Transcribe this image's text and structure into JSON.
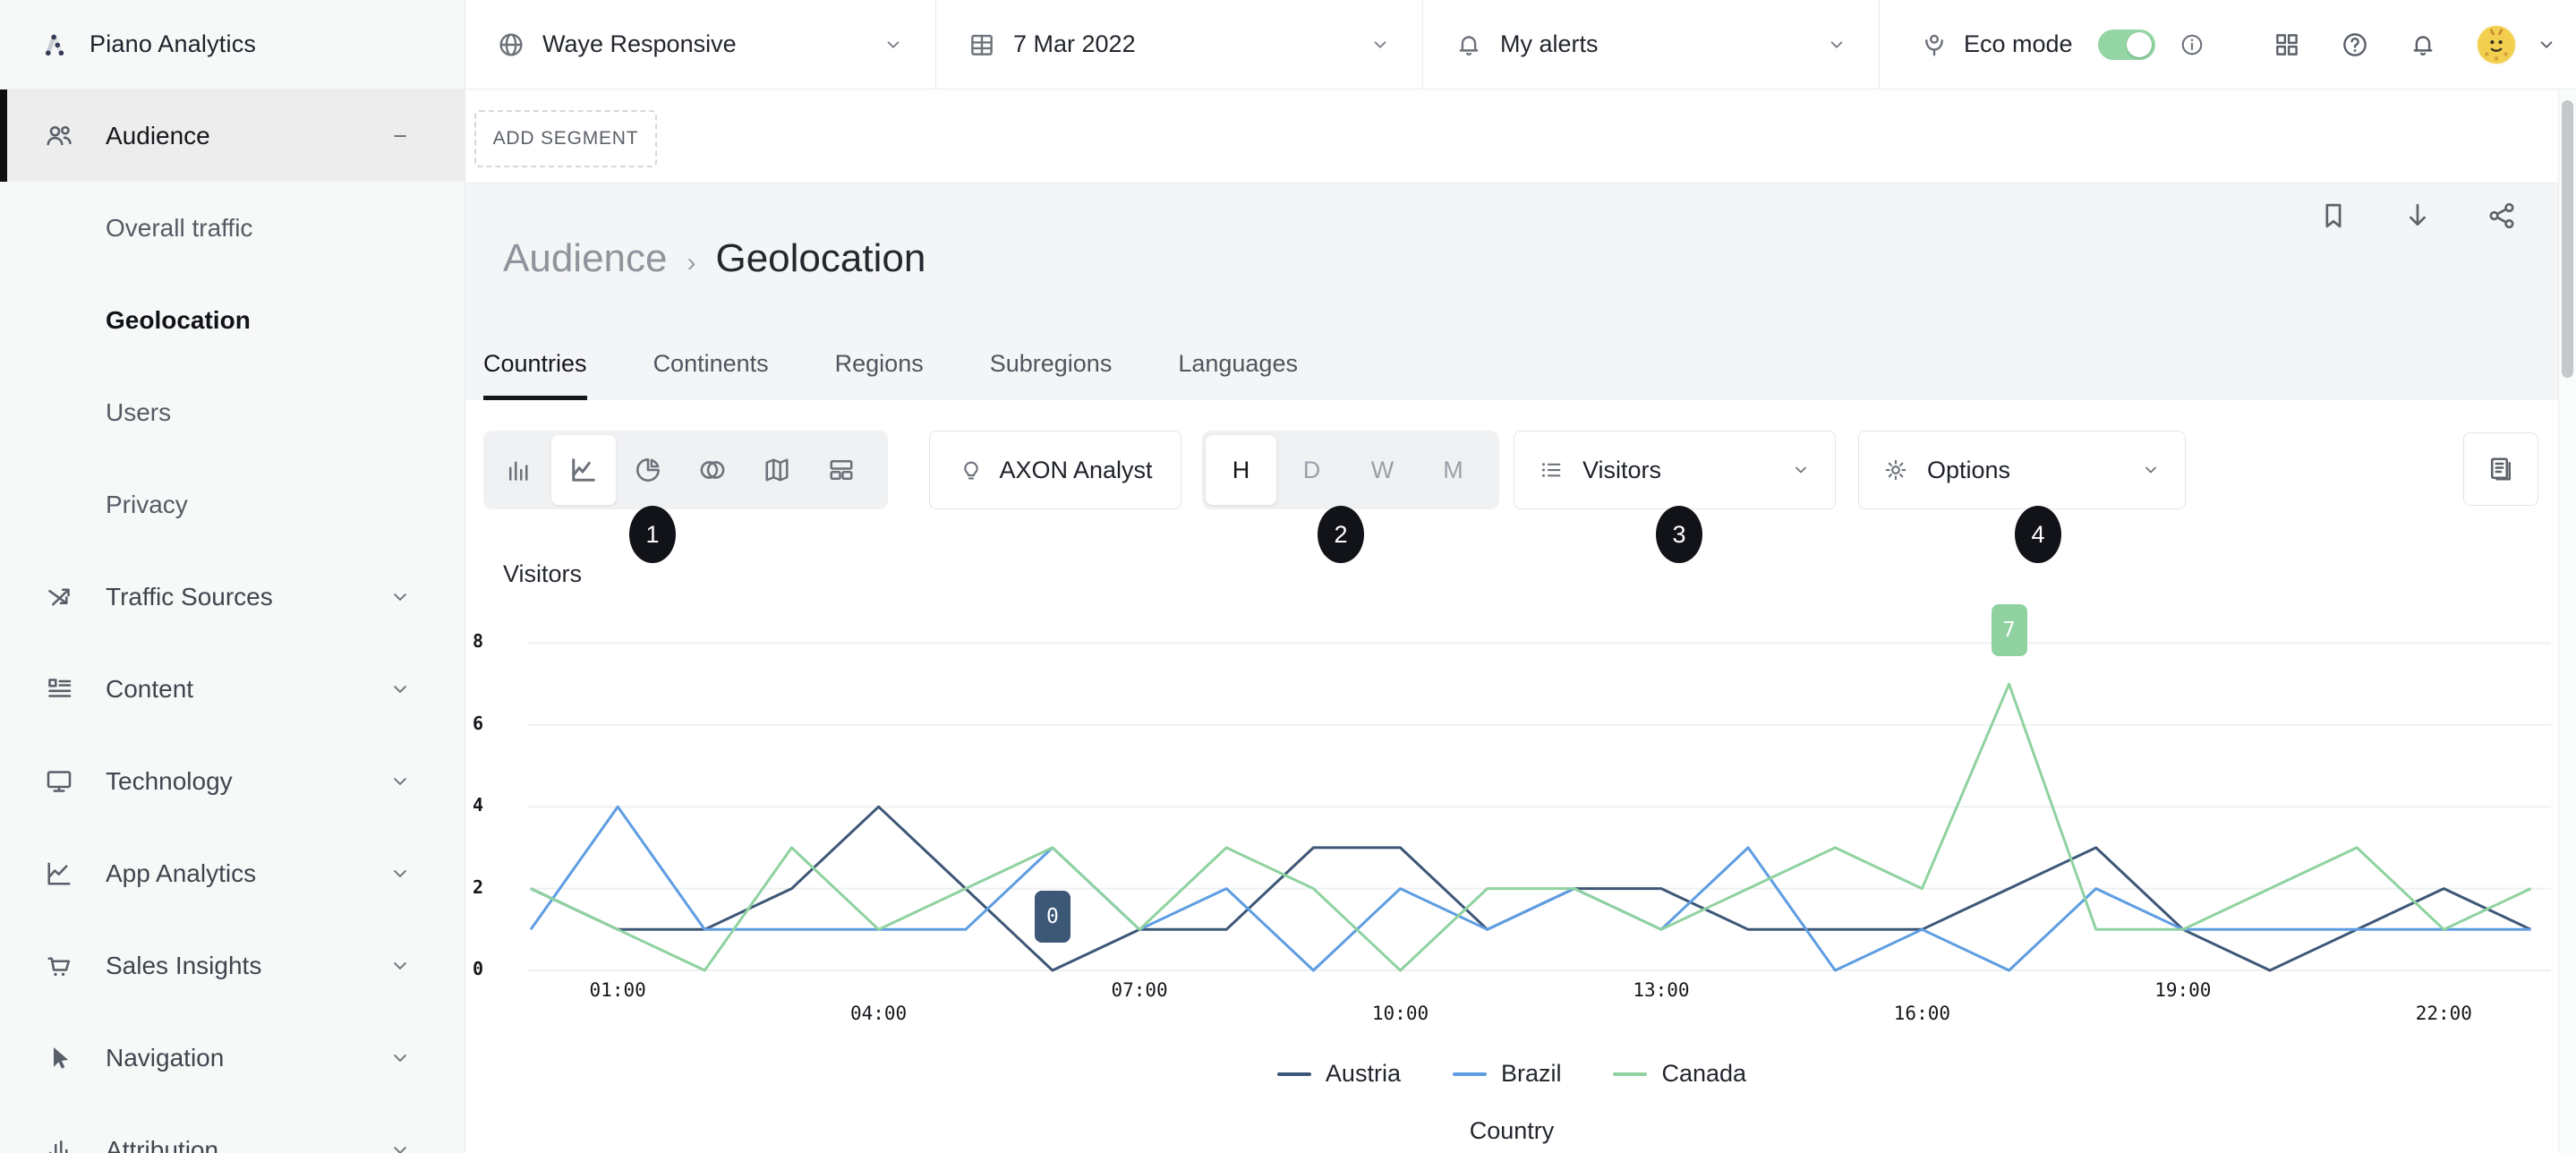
{
  "header": {
    "brand": "Piano Analytics",
    "site": {
      "label": "Waye Responsive"
    },
    "date": {
      "label": "7 Mar 2022"
    },
    "alerts": {
      "label": "My alerts"
    },
    "eco": {
      "label": "Eco mode",
      "enabled": true,
      "toggle_color": "#93d6a3"
    }
  },
  "sidebar": {
    "items": [
      {
        "label": "Audience",
        "icon": "audience-icon",
        "type": "section",
        "state": "expanded",
        "active": true
      },
      {
        "label": "Overall traffic",
        "type": "child"
      },
      {
        "label": "Geolocation",
        "type": "child",
        "selected": true
      },
      {
        "label": "Users",
        "type": "child"
      },
      {
        "label": "Privacy",
        "type": "child"
      },
      {
        "label": "Traffic Sources",
        "icon": "traffic-sources-icon",
        "type": "section"
      },
      {
        "label": "Content",
        "icon": "content-icon",
        "type": "section"
      },
      {
        "label": "Technology",
        "icon": "technology-icon",
        "type": "section"
      },
      {
        "label": "App Analytics",
        "icon": "app-analytics-icon",
        "type": "section"
      },
      {
        "label": "Sales Insights",
        "icon": "sales-insights-icon",
        "type": "section"
      },
      {
        "label": "Navigation",
        "icon": "navigation-icon",
        "type": "section"
      },
      {
        "label": "Attribution",
        "icon": "attribution-icon",
        "type": "section"
      }
    ]
  },
  "segment_bar": {
    "add_segment_label": "ADD SEGMENT"
  },
  "page": {
    "breadcrumb": {
      "parent": "Audience",
      "separator": "›",
      "current": "Geolocation"
    },
    "tabs": [
      {
        "label": "Countries",
        "active": true
      },
      {
        "label": "Continents"
      },
      {
        "label": "Regions"
      },
      {
        "label": "Subregions"
      },
      {
        "label": "Languages"
      }
    ]
  },
  "toolbar": {
    "chart_types": [
      {
        "name": "bar-chart-icon"
      },
      {
        "name": "line-chart-icon",
        "selected": true
      },
      {
        "name": "pie-chart-icon"
      },
      {
        "name": "venn-diagram-icon"
      },
      {
        "name": "map-icon"
      },
      {
        "name": "layout-icon"
      }
    ],
    "axon_label": "AXON Analyst",
    "granularity": {
      "options": [
        "H",
        "D",
        "W",
        "M"
      ],
      "selected": "H"
    },
    "metric": {
      "label": "Visitors"
    },
    "options": {
      "label": "Options"
    },
    "step_badges": [
      "1",
      "2",
      "3",
      "4"
    ]
  },
  "chart_data": {
    "type": "line",
    "title": "Visitors",
    "legend_title": "Country",
    "legend_position": "bottom",
    "grid": "horizontal",
    "ylim": [
      0,
      8
    ],
    "yticks": [
      0,
      2,
      4,
      6,
      8
    ],
    "x": [
      "00:00",
      "01:00",
      "02:00",
      "03:00",
      "04:00",
      "05:00",
      "06:00",
      "07:00",
      "08:00",
      "09:00",
      "10:00",
      "11:00",
      "12:00",
      "13:00",
      "14:00",
      "15:00",
      "16:00",
      "17:00",
      "18:00",
      "19:00",
      "20:00",
      "21:00",
      "22:00",
      "23:00"
    ],
    "x_ticks_shown": [
      "01:00",
      "04:00",
      "07:00",
      "10:00",
      "13:00",
      "16:00",
      "19:00",
      "22:00"
    ],
    "series": [
      {
        "name": "Austria",
        "color": "#3d5777",
        "values": [
          2,
          1,
          1,
          2,
          4,
          2,
          0,
          1,
          1,
          3,
          3,
          1,
          2,
          2,
          1,
          1,
          1,
          2,
          3,
          1,
          0,
          1,
          2,
          1
        ]
      },
      {
        "name": "Brazil",
        "color": "#5e9de2",
        "values": [
          1,
          4,
          1,
          1,
          1,
          1,
          3,
          1,
          2,
          0,
          2,
          1,
          2,
          1,
          3,
          0,
          1,
          0,
          2,
          1,
          1,
          1,
          1,
          1
        ]
      },
      {
        "name": "Canada",
        "color": "#8fd2a0",
        "values": [
          2,
          1,
          0,
          3,
          1,
          2,
          3,
          1,
          3,
          2,
          0,
          2,
          2,
          1,
          2,
          3,
          2,
          7,
          1,
          1,
          2,
          3,
          1,
          2
        ]
      }
    ],
    "annotations": [
      {
        "series": "Austria",
        "x": "06:00",
        "label": "0"
      },
      {
        "series": "Canada",
        "x": "17:00",
        "label": "7"
      }
    ]
  }
}
